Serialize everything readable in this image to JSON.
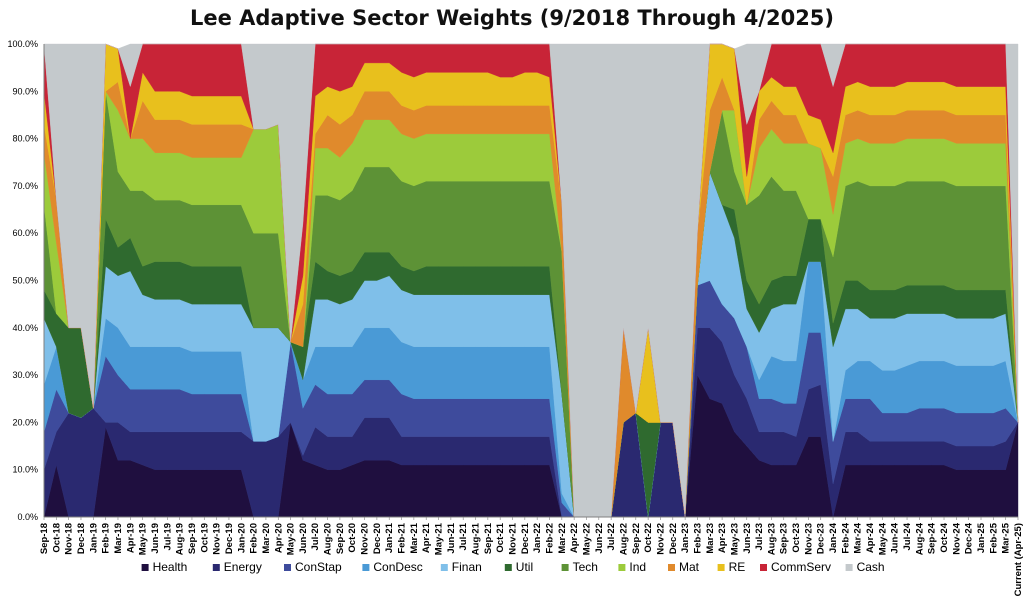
{
  "chart_data": {
    "type": "area",
    "stacked": true,
    "title": "Lee Adaptive Sector Weights (9/2018 Through 4/2025)",
    "xlabel": "",
    "ylabel": "",
    "ylim": [
      0,
      100
    ],
    "y_ticks": [
      "0.0%",
      "10.0%",
      "20.0%",
      "30.0%",
      "40.0%",
      "50.0%",
      "60.0%",
      "70.0%",
      "80.0%",
      "90.0%",
      "100.0%"
    ],
    "legend_position": "bottom",
    "grid": false,
    "categories": [
      "Sep-18",
      "Oct-18",
      "Nov-18",
      "Dec-18",
      "Jan-19",
      "Feb-19",
      "Mar-19",
      "Apr-19",
      "May-19",
      "Jun-19",
      "Jul-19",
      "Aug-19",
      "Sep-19",
      "Oct-19",
      "Nov-19",
      "Dec-19",
      "Jan-20",
      "Feb-20",
      "Mar-20",
      "Apr-20",
      "May-20",
      "Jun-20",
      "Jul-20",
      "Aug-20",
      "Sep-20",
      "Oct-20",
      "Nov-20",
      "Dec-20",
      "Jan-21",
      "Feb-21",
      "Mar-21",
      "Apr-21",
      "May-21",
      "Jun-21",
      "Jul-21",
      "Aug-21",
      "Sep-21",
      "Oct-21",
      "Nov-21",
      "Dec-21",
      "Jan-22",
      "Feb-22",
      "Mar-22",
      "Apr-22",
      "May-22",
      "Jun-22",
      "Jul-22",
      "Aug-22",
      "Sep-22",
      "Oct-22",
      "Nov-22",
      "Dec-22",
      "Jan-23",
      "Feb-23",
      "Mar-23",
      "Apr-23",
      "May-23",
      "Jun-23",
      "Jul-23",
      "Aug-23",
      "Sep-23",
      "Oct-23",
      "Nov-23",
      "Dec-23",
      "Jan-24",
      "Feb-24",
      "Mar-24",
      "Apr-24",
      "May-24",
      "Jun-24",
      "Jul-24",
      "Aug-24",
      "Sep-24",
      "Oct-24",
      "Nov-24",
      "Dec-24",
      "Jan-25",
      "Feb-25",
      "Mar-25",
      "Current (Apr-25)"
    ],
    "series": [
      {
        "name": "Health",
        "color": "#1f0f3f",
        "values": [
          0,
          11,
          0,
          0,
          0,
          19,
          12,
          12,
          11,
          10,
          10,
          10,
          10,
          10,
          10,
          10,
          10,
          0,
          0,
          0,
          20,
          12,
          11,
          10,
          10,
          11,
          12,
          12,
          12,
          11,
          11,
          11,
          11,
          11,
          11,
          11,
          11,
          11,
          11,
          11,
          11,
          11,
          0,
          0,
          0,
          0,
          0,
          0,
          0,
          0,
          0,
          0,
          0,
          30,
          25,
          24,
          18,
          15,
          12,
          11,
          11,
          11,
          17,
          17,
          0,
          11,
          11,
          11,
          11,
          11,
          11,
          11,
          11,
          11,
          10,
          10,
          10,
          10,
          10,
          20
        ]
      },
      {
        "name": "Energy",
        "color": "#2a2970",
        "values": [
          10,
          7,
          22,
          21,
          23,
          1,
          8,
          6,
          7,
          8,
          8,
          8,
          8,
          8,
          8,
          8,
          8,
          16,
          16,
          17,
          0,
          1,
          8,
          7,
          7,
          6,
          9,
          9,
          9,
          6,
          6,
          6,
          6,
          6,
          6,
          6,
          6,
          6,
          6,
          6,
          6,
          6,
          0,
          0,
          0,
          0,
          0,
          20,
          22,
          0,
          20,
          20,
          0,
          10,
          15,
          13,
          12,
          10,
          6,
          7,
          7,
          6,
          10,
          11,
          7,
          7,
          7,
          5,
          5,
          5,
          5,
          5,
          5,
          5,
          5,
          5,
          5,
          5,
          6,
          0
        ]
      },
      {
        "name": "ConStap",
        "color": "#3e4b9c",
        "values": [
          8,
          9,
          0,
          0,
          0,
          14,
          10,
          9,
          9,
          9,
          9,
          9,
          8,
          8,
          8,
          8,
          8,
          0,
          0,
          0,
          17,
          10,
          9,
          9,
          9,
          9,
          8,
          8,
          8,
          9,
          8,
          8,
          8,
          8,
          8,
          8,
          8,
          8,
          8,
          8,
          8,
          8,
          3,
          0,
          0,
          0,
          0,
          0,
          0,
          0,
          0,
          0,
          0,
          9,
          10,
          8,
          12,
          11,
          7,
          7,
          6,
          7,
          12,
          11,
          9,
          7,
          7,
          9,
          6,
          6,
          6,
          7,
          7,
          7,
          7,
          7,
          7,
          7,
          7,
          0
        ]
      },
      {
        "name": "ConDesc",
        "color": "#4a9ad6",
        "values": [
          10,
          9,
          0,
          0,
          0,
          8,
          10,
          9,
          9,
          9,
          9,
          9,
          9,
          9,
          9,
          9,
          9,
          0,
          0,
          0,
          0,
          6,
          8,
          10,
          10,
          10,
          11,
          11,
          11,
          11,
          11,
          11,
          11,
          11,
          11,
          11,
          11,
          11,
          11,
          11,
          11,
          11,
          2,
          0,
          0,
          0,
          0,
          0,
          0,
          0,
          0,
          0,
          0,
          0,
          0,
          0,
          0,
          0,
          4,
          9,
          9,
          9,
          15,
          15,
          0,
          6,
          8,
          8,
          9,
          9,
          10,
          10,
          10,
          10,
          10,
          10,
          10,
          10,
          10,
          0
        ]
      },
      {
        "name": "Finan",
        "color": "#7fbfe9",
        "values": [
          14,
          0,
          0,
          0,
          0,
          11,
          11,
          16,
          11,
          10,
          10,
          10,
          10,
          10,
          10,
          10,
          10,
          24,
          24,
          23,
          0,
          0,
          10,
          10,
          9,
          10,
          10,
          10,
          11,
          11,
          11,
          11,
          11,
          11,
          11,
          11,
          11,
          11,
          11,
          11,
          11,
          11,
          21,
          0,
          0,
          0,
          0,
          0,
          0,
          0,
          0,
          0,
          0,
          0,
          23,
          21,
          17,
          8,
          10,
          10,
          12,
          12,
          0,
          0,
          20,
          13,
          11,
          9,
          11,
          11,
          11,
          10,
          10,
          10,
          10,
          10,
          10,
          10,
          10,
          0
        ]
      },
      {
        "name": "Util",
        "color": "#2f6a2f",
        "values": [
          6,
          7,
          18,
          19,
          0,
          10,
          6,
          7,
          6,
          8,
          8,
          8,
          8,
          8,
          8,
          8,
          8,
          0,
          0,
          0,
          0,
          7,
          8,
          6,
          6,
          6,
          6,
          6,
          5,
          5,
          5,
          6,
          6,
          6,
          6,
          6,
          6,
          6,
          6,
          6,
          6,
          6,
          0,
          0,
          0,
          0,
          0,
          0,
          0,
          20,
          0,
          0,
          0,
          0,
          0,
          0,
          6,
          6,
          6,
          6,
          6,
          6,
          9,
          9,
          5,
          6,
          6,
          6,
          6,
          6,
          6,
          6,
          6,
          6,
          6,
          6,
          6,
          6,
          5,
          0
        ]
      },
      {
        "name": "Tech",
        "color": "#5d9236",
        "values": [
          18,
          0,
          0,
          0,
          0,
          27,
          16,
          10,
          16,
          13,
          13,
          13,
          13,
          13,
          13,
          13,
          13,
          20,
          20,
          20,
          0,
          0,
          14,
          16,
          16,
          17,
          18,
          18,
          18,
          18,
          18,
          18,
          18,
          18,
          18,
          18,
          18,
          18,
          18,
          18,
          18,
          18,
          30,
          0,
          0,
          0,
          0,
          0,
          0,
          0,
          0,
          0,
          0,
          0,
          0,
          20,
          8,
          16,
          23,
          22,
          18,
          18,
          0,
          0,
          14,
          20,
          21,
          22,
          22,
          22,
          22,
          22,
          22,
          22,
          22,
          22,
          22,
          22,
          22,
          0
        ]
      },
      {
        "name": "Ind",
        "color": "#9ccb3b",
        "values": [
          11,
          15,
          0,
          0,
          0,
          0,
          13,
          11,
          11,
          10,
          10,
          10,
          10,
          10,
          10,
          10,
          10,
          22,
          22,
          23,
          0,
          0,
          10,
          10,
          9,
          10,
          10,
          10,
          10,
          10,
          10,
          10,
          10,
          10,
          10,
          10,
          10,
          10,
          10,
          10,
          10,
          10,
          0,
          0,
          0,
          0,
          0,
          0,
          0,
          0,
          0,
          0,
          0,
          0,
          0,
          0,
          13,
          0,
          10,
          10,
          10,
          10,
          16,
          15,
          9,
          9,
          9,
          9,
          9,
          9,
          9,
          9,
          9,
          9,
          9,
          9,
          9,
          9,
          9,
          0
        ]
      },
      {
        "name": "Mat",
        "color": "#e08a2c",
        "values": [
          6,
          9,
          0,
          0,
          0,
          0,
          6,
          0,
          8,
          7,
          7,
          7,
          7,
          7,
          7,
          7,
          7,
          0,
          0,
          0,
          0,
          9,
          3,
          7,
          7,
          6,
          6,
          6,
          6,
          6,
          6,
          6,
          6,
          6,
          6,
          6,
          6,
          6,
          6,
          6,
          6,
          6,
          10,
          0,
          0,
          0,
          0,
          20,
          0,
          0,
          0,
          0,
          0,
          11,
          13,
          7,
          0,
          0,
          6,
          6,
          6,
          6,
          0,
          0,
          8,
          6,
          6,
          6,
          6,
          6,
          6,
          6,
          6,
          6,
          6,
          6,
          6,
          6,
          6,
          0
        ]
      },
      {
        "name": "RE",
        "color": "#e8c01d",
        "values": [
          7,
          0,
          0,
          0,
          0,
          10,
          7,
          0,
          6,
          6,
          6,
          6,
          6,
          6,
          6,
          6,
          6,
          0,
          0,
          0,
          0,
          6,
          8,
          6,
          7,
          6,
          6,
          6,
          6,
          7,
          7,
          7,
          7,
          7,
          7,
          7,
          7,
          6,
          6,
          7,
          7,
          6,
          0,
          0,
          0,
          0,
          0,
          0,
          0,
          20,
          0,
          0,
          0,
          0,
          14,
          11,
          13,
          6,
          6,
          5,
          6,
          6,
          6,
          6,
          5,
          6,
          6,
          6,
          6,
          6,
          6,
          6,
          6,
          6,
          6,
          6,
          6,
          6,
          6,
          0
        ]
      },
      {
        "name": "CommServ",
        "color": "#c82437",
        "values": [
          10,
          0,
          0,
          0,
          0,
          0,
          0,
          11,
          6,
          10,
          10,
          10,
          11,
          11,
          11,
          11,
          11,
          0,
          0,
          0,
          0,
          11,
          11,
          9,
          10,
          9,
          4,
          4,
          5,
          6,
          7,
          7,
          7,
          7,
          7,
          7,
          7,
          7,
          7,
          7,
          7,
          7,
          0,
          0,
          0,
          0,
          0,
          0,
          0,
          0,
          0,
          0,
          0,
          0,
          0,
          0,
          0,
          11,
          0,
          10,
          9,
          9,
          15,
          16,
          14,
          10,
          9,
          9,
          9,
          9,
          9,
          9,
          9,
          9,
          10,
          10,
          10,
          10,
          10,
          0
        ]
      },
      {
        "name": "Cash",
        "color": "#c4c9cc",
        "values": [
          0,
          33,
          60,
          60,
          77,
          0,
          0,
          9,
          0,
          0,
          0,
          0,
          0,
          0,
          0,
          0,
          0,
          18,
          18,
          17,
          63,
          38,
          0,
          0,
          0,
          0,
          0,
          0,
          0,
          0,
          0,
          0,
          0,
          0,
          0,
          0,
          0,
          0,
          0,
          0,
          0,
          1,
          34,
          100,
          100,
          100,
          100,
          60,
          78,
          60,
          80,
          80,
          100,
          40,
          0,
          0,
          0,
          17,
          10,
          0,
          0,
          0,
          0,
          0,
          9,
          0,
          0,
          0,
          0,
          0,
          0,
          0,
          0,
          0,
          0,
          0,
          0,
          0,
          1,
          80
        ]
      }
    ]
  }
}
